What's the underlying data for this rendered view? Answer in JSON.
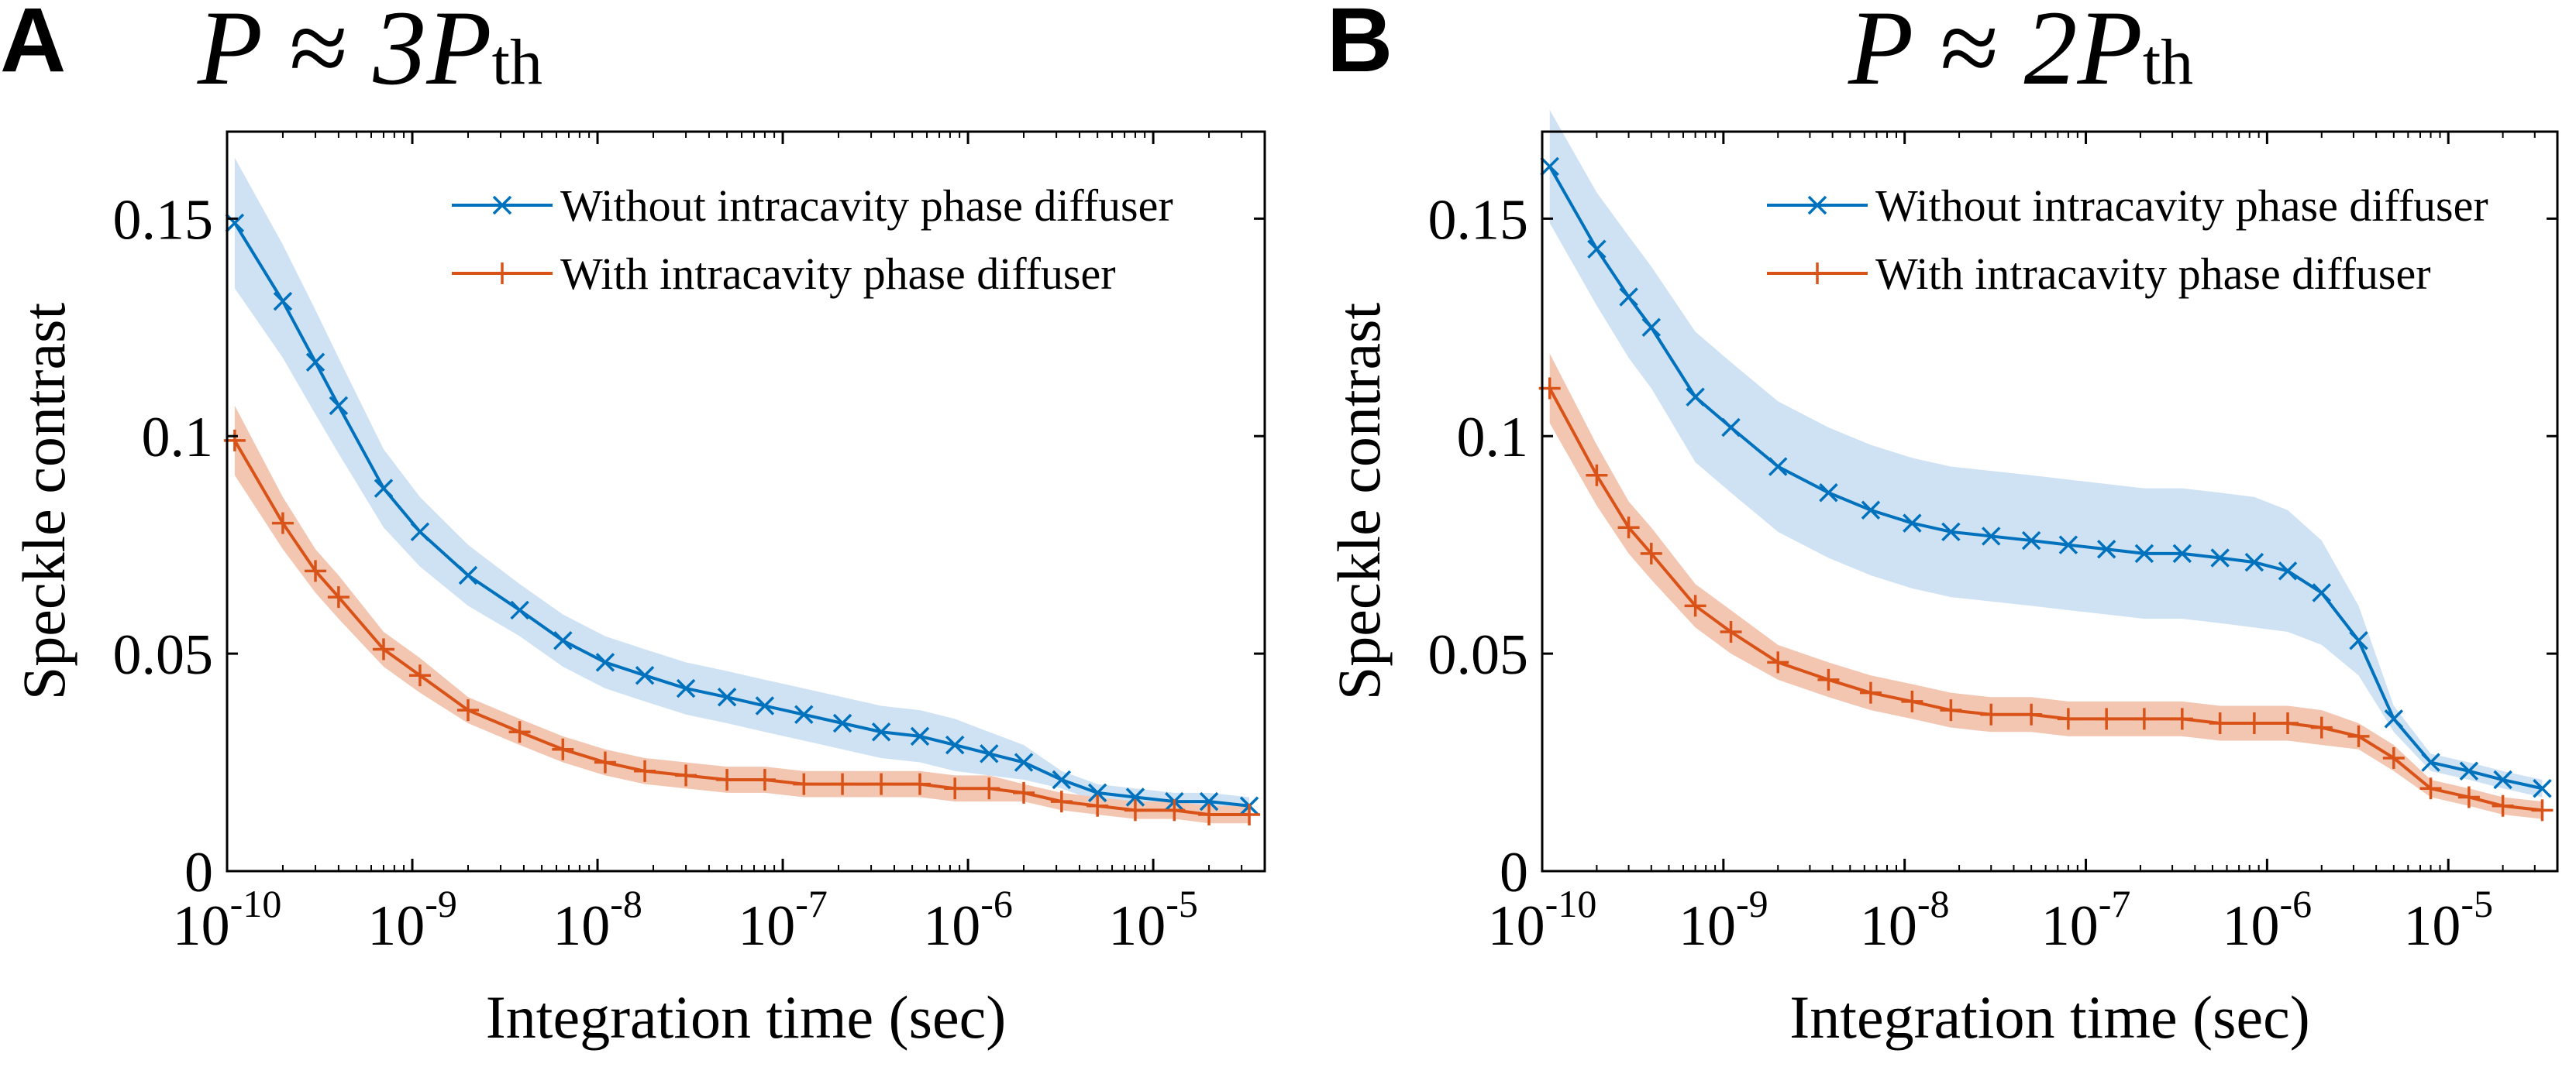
{
  "panels": [
    {
      "letter": "A",
      "title_main": "P ≈ 3P",
      "title_sub": "th",
      "ylabel": "Speckle contrast",
      "xlabel": "Integration time (sec)",
      "x_ticks": [
        {
          "exp": -10,
          "text": "10",
          "sup": "-10"
        },
        {
          "exp": -9,
          "text": "10",
          "sup": "-9"
        },
        {
          "exp": -8,
          "text": "10",
          "sup": "-8"
        },
        {
          "exp": -7,
          "text": "10",
          "sup": "-7"
        },
        {
          "exp": -6,
          "text": "10",
          "sup": "-6"
        },
        {
          "exp": -5,
          "text": "10",
          "sup": "-5"
        }
      ],
      "y_ticks": [
        {
          "value": 0,
          "label": "0"
        },
        {
          "value": 0.05,
          "label": "0.05"
        },
        {
          "value": 0.1,
          "label": "0.1"
        },
        {
          "value": 0.15,
          "label": "0.15"
        }
      ],
      "legend": [
        "Without intracavity phase diffuser",
        "With intracavity phase diffuser"
      ]
    },
    {
      "letter": "B",
      "title_main": "P ≈ 2P",
      "title_sub": "th",
      "ylabel": "Speckle contrast",
      "xlabel": "Integration time (sec)",
      "x_ticks": [
        {
          "exp": -10,
          "text": "10",
          "sup": "-10"
        },
        {
          "exp": -9,
          "text": "10",
          "sup": "-9"
        },
        {
          "exp": -8,
          "text": "10",
          "sup": "-8"
        },
        {
          "exp": -7,
          "text": "10",
          "sup": "-7"
        },
        {
          "exp": -6,
          "text": "10",
          "sup": "-6"
        },
        {
          "exp": -5,
          "text": "10",
          "sup": "-5"
        }
      ],
      "y_ticks": [
        {
          "value": 0,
          "label": "0"
        },
        {
          "value": 0.05,
          "label": "0.05"
        },
        {
          "value": 0.1,
          "label": "0.1"
        },
        {
          "value": 0.15,
          "label": "0.15"
        }
      ],
      "legend": [
        "Without intracavity phase diffuser",
        "With intracavity phase diffuser"
      ]
    }
  ],
  "colors": {
    "blue": "#0072BD",
    "orange": "#D95319",
    "blue_band": "#CFE2F3",
    "orange_band": "#F3C6B2"
  },
  "chart_data": [
    {
      "type": "line",
      "title": "P ≈ 3Pth",
      "xlabel": "Integration time (sec)",
      "ylabel": "Speckle contrast",
      "x_scale": "log",
      "xlim": [
        1e-10,
        4e-05
      ],
      "ylim": [
        0,
        0.17
      ],
      "grid": false,
      "legend_position": "top-right",
      "x": [
        1.1e-10,
        2e-10,
        3e-10,
        4e-10,
        7e-10,
        1.1e-09,
        2e-09,
        3.8e-09,
        6.5e-09,
        1.1e-08,
        1.8e-08,
        3e-08,
        5e-08,
        8e-08,
        1.3e-07,
        2.1e-07,
        3.4e-07,
        5.5e-07,
        8.5e-07,
        1.3e-06,
        2e-06,
        3.2e-06,
        5e-06,
        8e-06,
        1.3e-05,
        2e-05,
        3.3e-05
      ],
      "series": [
        {
          "name": "Without intracavity phase diffuser",
          "marker": "x",
          "values": [
            0.149,
            0.131,
            0.117,
            0.107,
            0.088,
            0.078,
            0.068,
            0.06,
            0.053,
            0.048,
            0.045,
            0.042,
            0.04,
            0.038,
            0.036,
            0.034,
            0.032,
            0.031,
            0.029,
            0.027,
            0.025,
            0.021,
            0.018,
            0.017,
            0.016,
            0.016,
            0.015
          ],
          "band_halfwidth": [
            0.015,
            0.013,
            0.012,
            0.011,
            0.009,
            0.008,
            0.007,
            0.006,
            0.006,
            0.006,
            0.006,
            0.006,
            0.006,
            0.006,
            0.006,
            0.006,
            0.006,
            0.006,
            0.006,
            0.005,
            0.004,
            0.002,
            0.002,
            0.002,
            0.002,
            0.002,
            0.002
          ]
        },
        {
          "name": "With intracavity phase diffuser",
          "marker": "+",
          "values": [
            0.099,
            0.08,
            0.069,
            0.063,
            0.051,
            0.045,
            0.037,
            0.032,
            0.028,
            0.025,
            0.023,
            0.022,
            0.021,
            0.021,
            0.02,
            0.02,
            0.02,
            0.02,
            0.019,
            0.019,
            0.018,
            0.016,
            0.015,
            0.014,
            0.014,
            0.013,
            0.013
          ],
          "band_halfwidth": [
            0.008,
            0.006,
            0.005,
            0.005,
            0.004,
            0.004,
            0.003,
            0.003,
            0.003,
            0.003,
            0.003,
            0.003,
            0.003,
            0.003,
            0.003,
            0.003,
            0.003,
            0.003,
            0.003,
            0.003,
            0.002,
            0.002,
            0.002,
            0.002,
            0.002,
            0.002,
            0.002
          ]
        }
      ]
    },
    {
      "type": "line",
      "title": "P ≈ 2Pth",
      "xlabel": "Integration time (sec)",
      "ylabel": "Speckle contrast",
      "x_scale": "log",
      "xlim": [
        1e-10,
        4e-05
      ],
      "ylim": [
        0,
        0.17
      ],
      "grid": false,
      "legend_position": "top-right",
      "x": [
        1.1e-10,
        2e-10,
        3e-10,
        4e-10,
        7e-10,
        1.1e-09,
        2e-09,
        3.8e-09,
        6.5e-09,
        1.1e-08,
        1.8e-08,
        3e-08,
        5e-08,
        8e-08,
        1.3e-07,
        2.1e-07,
        3.4e-07,
        5.5e-07,
        8.5e-07,
        1.3e-06,
        2e-06,
        3.2e-06,
        5e-06,
        8e-06,
        1.3e-05,
        2e-05,
        3.3e-05
      ],
      "series": [
        {
          "name": "Without intracavity phase diffuser",
          "marker": "x",
          "values": [
            0.162,
            0.143,
            0.132,
            0.125,
            0.109,
            0.102,
            0.093,
            0.087,
            0.083,
            0.08,
            0.078,
            0.077,
            0.076,
            0.075,
            0.074,
            0.073,
            0.073,
            0.072,
            0.071,
            0.069,
            0.064,
            0.053,
            0.035,
            0.025,
            0.023,
            0.021,
            0.019
          ],
          "band_halfwidth": [
            0.013,
            0.013,
            0.014,
            0.014,
            0.015,
            0.015,
            0.015,
            0.015,
            0.015,
            0.015,
            0.015,
            0.015,
            0.015,
            0.015,
            0.015,
            0.015,
            0.015,
            0.015,
            0.015,
            0.014,
            0.012,
            0.008,
            0.003,
            0.002,
            0.002,
            0.002,
            0.002
          ]
        },
        {
          "name": "With intracavity phase diffuser",
          "marker": "+",
          "values": [
            0.111,
            0.091,
            0.079,
            0.073,
            0.061,
            0.055,
            0.048,
            0.044,
            0.041,
            0.039,
            0.037,
            0.036,
            0.036,
            0.035,
            0.035,
            0.035,
            0.035,
            0.034,
            0.034,
            0.034,
            0.033,
            0.031,
            0.026,
            0.019,
            0.017,
            0.015,
            0.014
          ],
          "band_halfwidth": [
            0.008,
            0.007,
            0.006,
            0.006,
            0.005,
            0.005,
            0.004,
            0.004,
            0.004,
            0.004,
            0.004,
            0.004,
            0.004,
            0.004,
            0.004,
            0.004,
            0.004,
            0.004,
            0.004,
            0.004,
            0.004,
            0.003,
            0.003,
            0.002,
            0.002,
            0.002,
            0.002
          ]
        }
      ]
    }
  ]
}
